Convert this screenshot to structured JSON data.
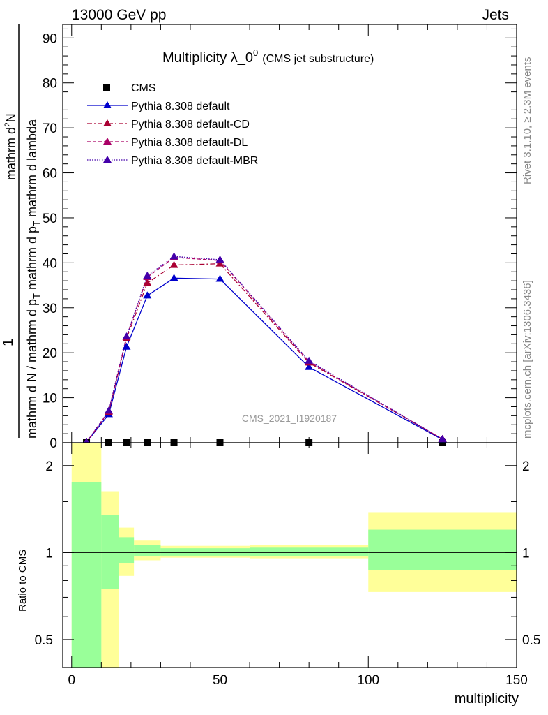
{
  "header": {
    "left": "13000 GeV pp",
    "right": "Jets"
  },
  "title": {
    "main": "Multiplicity λ_0",
    "superscript": "0",
    "sub": "(CMS jet substructure)"
  },
  "side_labels": {
    "rivet": "Rivet 3.1.10, ≥ 2.3M events",
    "mcplots": "mcplots.cern.ch [arXiv:1306.3436]"
  },
  "watermark": "CMS_2021_I1920187",
  "colors": {
    "cms": "#000000",
    "default": "#0000cc",
    "cd": "#aa0033",
    "dl": "#aa0066",
    "mbr": "#4400aa",
    "band_inner": "#99ff99",
    "band_outer": "#ffff99"
  },
  "chart_data": [
    {
      "type": "line",
      "ylabel_numerator": "1",
      "ylabel_den1": "mathrm d N / mathrm d p",
      "ylabel_den1_sub": "T",
      "ylabel_den2": "mathrm d p",
      "ylabel_den2_sub": "T",
      "ylabel_den2_tail": "mathrm d lambda",
      "ylabel_top": "mathrm d",
      "ylabel_top_sup": "2",
      "ylabel_top_tail": "N",
      "xlim": [
        -3,
        150
      ],
      "ylim": [
        0,
        93
      ],
      "y_ticks": [
        0,
        10,
        20,
        30,
        40,
        50,
        60,
        70,
        80,
        90
      ],
      "y_tick_labels": [
        "0",
        "10",
        "20",
        "30",
        "40",
        "50",
        "60",
        "70",
        "80",
        "90"
      ],
      "legend_position": "top-left",
      "series": [
        {
          "name": "CMS",
          "color": "#000000",
          "marker": "square",
          "x": [
            5,
            12.5,
            18.5,
            25.5,
            34.5,
            50,
            80,
            125
          ],
          "y": [
            0,
            0,
            0,
            0,
            0,
            0,
            0,
            0
          ]
        },
        {
          "name": "Pythia 8.308 default",
          "color": "#0000cc",
          "style": "solid",
          "x": [
            5,
            12.5,
            18.5,
            25.5,
            34.5,
            50,
            80,
            125
          ],
          "y": [
            0.1,
            6.3,
            21.3,
            32.7,
            36.6,
            36.4,
            16.8,
            0.7
          ]
        },
        {
          "name": "Pythia 8.308 default-CD",
          "color": "#aa0033",
          "style": "dash-dot",
          "x": [
            5,
            12.5,
            18.5,
            25.5,
            34.5,
            50,
            80,
            125
          ],
          "y": [
            0.1,
            6.8,
            23.2,
            35.5,
            39.5,
            39.8,
            17.8,
            0.8
          ]
        },
        {
          "name": "Pythia 8.308 default-DL",
          "color": "#aa0066",
          "style": "dashed",
          "x": [
            5,
            12.5,
            18.5,
            25.5,
            34.5,
            50,
            80,
            125
          ],
          "y": [
            0.1,
            7.0,
            23.5,
            36.8,
            41.2,
            40.5,
            18.0,
            0.8
          ]
        },
        {
          "name": "Pythia 8.308 default-MBR",
          "color": "#4400aa",
          "style": "dotted",
          "x": [
            5,
            12.5,
            18.5,
            25.5,
            34.5,
            50,
            80,
            125
          ],
          "y": [
            0.1,
            7.1,
            23.6,
            37.1,
            41.4,
            40.7,
            18.2,
            0.8
          ]
        }
      ]
    },
    {
      "type": "area",
      "ylabel": "Ratio to CMS",
      "xlabel": "multiplicity",
      "xlim": [
        -3,
        150
      ],
      "ylim": [
        0.4,
        2.4
      ],
      "log_y": true,
      "x_ticks": [
        0,
        50,
        100,
        150
      ],
      "x_tick_labels": [
        "0",
        "50",
        "100",
        "150"
      ],
      "y_ticks": [
        0.5,
        1,
        2
      ],
      "y_tick_labels": [
        "0.5",
        "1",
        "2"
      ],
      "reference_line": 1,
      "bins": [
        {
          "x_low": 0,
          "x_high": 10,
          "inner": [
            0.4,
            1.75
          ],
          "outer": [
            0.4,
            2.4
          ]
        },
        {
          "x_low": 10,
          "x_high": 16,
          "inner": [
            0.75,
            1.35
          ],
          "outer": [
            0.385,
            1.63
          ]
        },
        {
          "x_low": 16,
          "x_high": 21,
          "inner": [
            0.92,
            1.13
          ],
          "outer": [
            0.83,
            1.22
          ]
        },
        {
          "x_low": 21,
          "x_high": 30,
          "inner": [
            0.97,
            1.06
          ],
          "outer": [
            0.94,
            1.1
          ]
        },
        {
          "x_low": 30,
          "x_high": 60,
          "inner": [
            0.975,
            1.035
          ],
          "outer": [
            0.96,
            1.055
          ]
        },
        {
          "x_low": 60,
          "x_high": 100,
          "inner": [
            0.97,
            1.04
          ],
          "outer": [
            0.955,
            1.06
          ]
        },
        {
          "x_low": 100,
          "x_high": 150,
          "inner": [
            0.87,
            1.2
          ],
          "outer": [
            0.73,
            1.38
          ]
        }
      ]
    }
  ]
}
